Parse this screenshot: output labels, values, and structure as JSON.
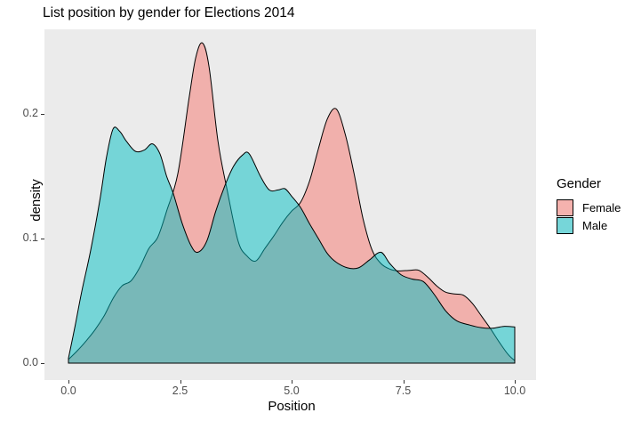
{
  "title": "List position by gender for Elections 2014",
  "axes": {
    "x": {
      "label": "Position",
      "ticks": [
        "0.0",
        "2.5",
        "5.0",
        "7.5",
        "10.0"
      ],
      "tick_values": [
        0,
        2.5,
        5,
        7.5,
        10
      ],
      "range": [
        0,
        10
      ]
    },
    "y": {
      "label": "density",
      "ticks": [
        "0.0",
        "0.1",
        "0.2"
      ],
      "tick_values": [
        0,
        0.1,
        0.2
      ],
      "range": [
        0,
        0.268
      ]
    }
  },
  "legend": {
    "title": "Gender",
    "items": [
      {
        "label": "Female",
        "color": "#F8766D",
        "swatch": "#F5B2AE"
      },
      {
        "label": "Male",
        "color": "#00BFC4",
        "swatch": "#76D6D9"
      }
    ]
  },
  "colors": {
    "panel_background": "#EBEBEB",
    "page_background": "#FFFFFF",
    "female_fill": "#F8766D",
    "male_fill": "#00BFC4",
    "outline": "#000000",
    "tick_label": "#4D4D4D",
    "tick_mark": "#333333"
  },
  "chart_data": {
    "type": "area",
    "subtype": "overlaid-density",
    "title": "List position by gender for Elections 2014",
    "xlabel": "Position",
    "ylabel": "density",
    "xlim": [
      0,
      10
    ],
    "ylim": [
      0,
      0.268
    ],
    "grid": false,
    "fill_opacity": 0.5,
    "legend_position": "right",
    "series": [
      {
        "name": "Female",
        "color": "#F8766D",
        "points": [
          [
            0,
            0.003
          ],
          [
            0.2,
            0.01
          ],
          [
            0.4,
            0.018
          ],
          [
            0.6,
            0.027
          ],
          [
            0.8,
            0.038
          ],
          [
            1.0,
            0.052
          ],
          [
            1.2,
            0.062
          ],
          [
            1.4,
            0.066
          ],
          [
            1.6,
            0.077
          ],
          [
            1.8,
            0.092
          ],
          [
            2.0,
            0.101
          ],
          [
            2.2,
            0.122
          ],
          [
            2.45,
            0.152
          ],
          [
            2.7,
            0.212
          ],
          [
            2.85,
            0.245
          ],
          [
            3.0,
            0.257
          ],
          [
            3.15,
            0.238
          ],
          [
            3.35,
            0.178
          ],
          [
            3.55,
            0.14
          ],
          [
            3.8,
            0.098
          ],
          [
            4.0,
            0.086
          ],
          [
            4.2,
            0.082
          ],
          [
            4.4,
            0.092
          ],
          [
            4.6,
            0.102
          ],
          [
            4.8,
            0.113
          ],
          [
            5.0,
            0.122
          ],
          [
            5.2,
            0.129
          ],
          [
            5.4,
            0.146
          ],
          [
            5.6,
            0.172
          ],
          [
            5.8,
            0.196
          ],
          [
            6.0,
            0.204
          ],
          [
            6.2,
            0.184
          ],
          [
            6.4,
            0.152
          ],
          [
            6.6,
            0.116
          ],
          [
            6.8,
            0.091
          ],
          [
            7.0,
            0.08
          ],
          [
            7.2,
            0.0755
          ],
          [
            7.4,
            0.074
          ],
          [
            7.65,
            0.0745
          ],
          [
            7.85,
            0.0745
          ],
          [
            8.05,
            0.069
          ],
          [
            8.25,
            0.062
          ],
          [
            8.45,
            0.057
          ],
          [
            8.65,
            0.0555
          ],
          [
            8.85,
            0.0545
          ],
          [
            9.05,
            0.048
          ],
          [
            9.25,
            0.038
          ],
          [
            9.45,
            0.028
          ],
          [
            9.65,
            0.017
          ],
          [
            9.85,
            0.007
          ],
          [
            10,
            0.002
          ]
        ]
      },
      {
        "name": "Male",
        "color": "#00BFC4",
        "points": [
          [
            0,
            0.004
          ],
          [
            0.15,
            0.03
          ],
          [
            0.3,
            0.058
          ],
          [
            0.5,
            0.091
          ],
          [
            0.7,
            0.13
          ],
          [
            0.85,
            0.165
          ],
          [
            1.0,
            0.188
          ],
          [
            1.15,
            0.186
          ],
          [
            1.3,
            0.178
          ],
          [
            1.5,
            0.17
          ],
          [
            1.7,
            0.171
          ],
          [
            1.88,
            0.176
          ],
          [
            2.05,
            0.168
          ],
          [
            2.2,
            0.15
          ],
          [
            2.35,
            0.136
          ],
          [
            2.55,
            0.112
          ],
          [
            2.75,
            0.094
          ],
          [
            2.9,
            0.089
          ],
          [
            3.1,
            0.098
          ],
          [
            3.3,
            0.122
          ],
          [
            3.5,
            0.142
          ],
          [
            3.7,
            0.158
          ],
          [
            3.9,
            0.167
          ],
          [
            4.05,
            0.168
          ],
          [
            4.3,
            0.15
          ],
          [
            4.5,
            0.139
          ],
          [
            4.7,
            0.139
          ],
          [
            4.85,
            0.14
          ],
          [
            5.0,
            0.134
          ],
          [
            5.2,
            0.125
          ],
          [
            5.4,
            0.112
          ],
          [
            5.6,
            0.1
          ],
          [
            5.8,
            0.088
          ],
          [
            6.0,
            0.081
          ],
          [
            6.25,
            0.0765
          ],
          [
            6.5,
            0.0765
          ],
          [
            6.75,
            0.083
          ],
          [
            7.0,
            0.089
          ],
          [
            7.2,
            0.08
          ],
          [
            7.45,
            0.071
          ],
          [
            7.7,
            0.0675
          ],
          [
            7.95,
            0.0655
          ],
          [
            8.2,
            0.055
          ],
          [
            8.45,
            0.042
          ],
          [
            8.7,
            0.034
          ],
          [
            9.0,
            0.0305
          ],
          [
            9.25,
            0.0285
          ],
          [
            9.5,
            0.028
          ],
          [
            9.75,
            0.0295
          ],
          [
            10,
            0.029
          ]
        ]
      }
    ]
  }
}
